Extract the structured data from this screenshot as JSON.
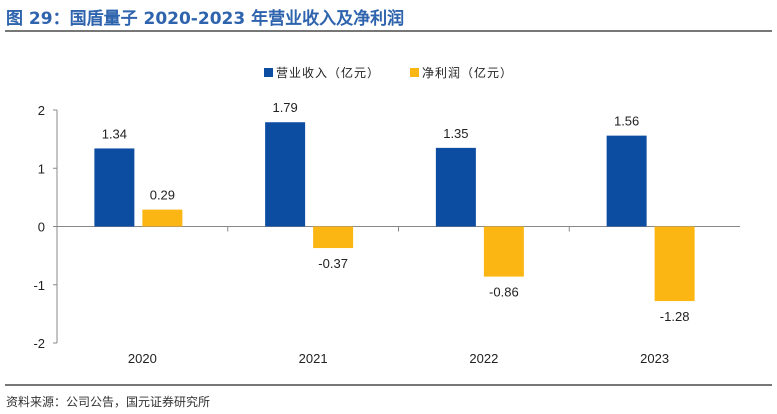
{
  "title": "图 29：国盾量子 2020-2023 年营业收入及净利润",
  "source": "资料来源：公司公告，国元证券研究所",
  "chart_data": {
    "type": "bar",
    "categories": [
      "2020",
      "2021",
      "2022",
      "2023"
    ],
    "series": [
      {
        "name": "营业收入（亿元）",
        "values": [
          1.34,
          1.79,
          1.35,
          1.56
        ],
        "color": "#0c4da2"
      },
      {
        "name": "净利润（亿元）",
        "values": [
          0.29,
          -0.37,
          -0.86,
          -1.28
        ],
        "color": "#fbb613"
      }
    ],
    "ylim": [
      -2,
      2
    ],
    "yticks": [
      "-2",
      "-1",
      "0",
      "1",
      "2"
    ],
    "legend": "top-center",
    "grid": false
  }
}
